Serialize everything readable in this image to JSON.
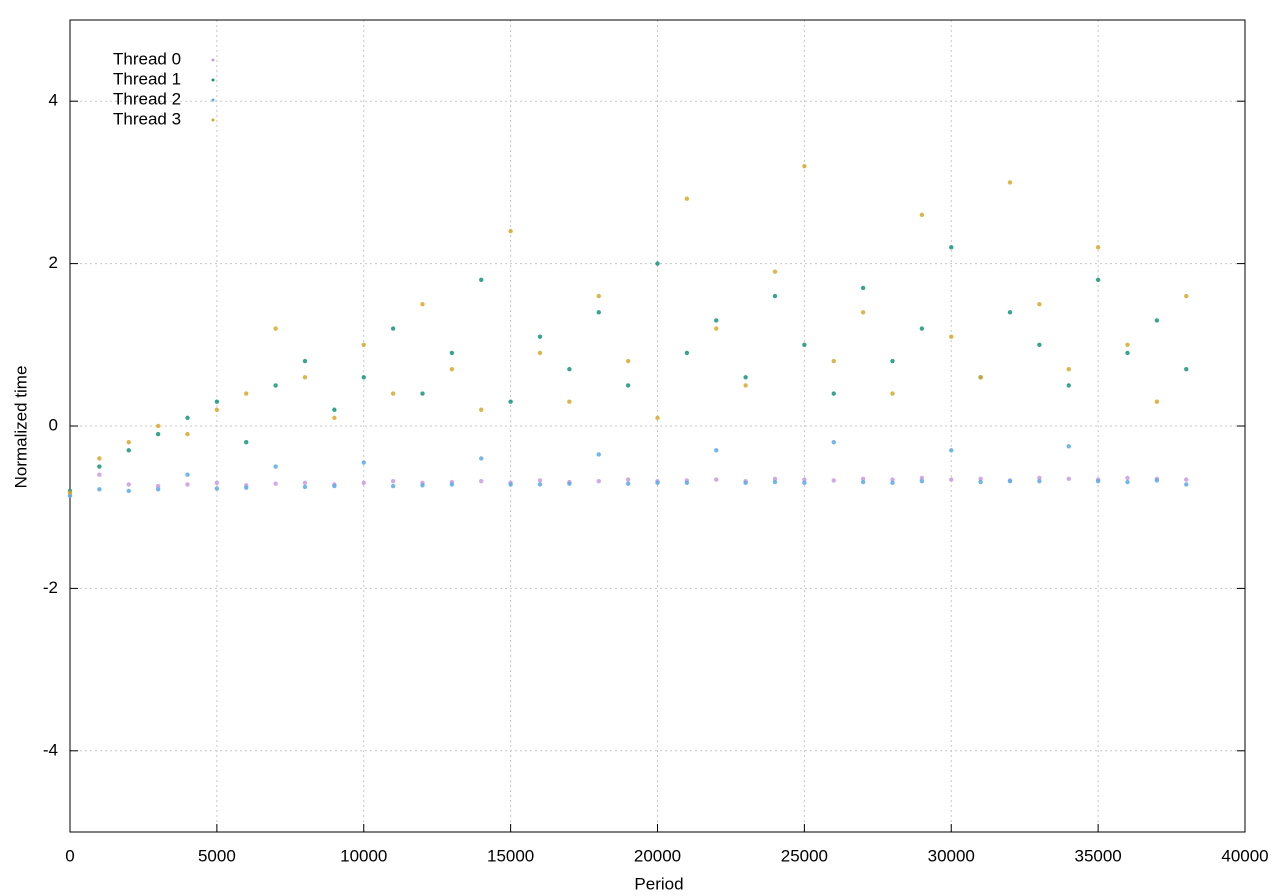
{
  "chart_data": {
    "type": "scatter",
    "xlabel": "Period",
    "ylabel": "Normalized time",
    "xlim": [
      0,
      40000
    ],
    "ylim": [
      -5,
      5
    ],
    "xticks": [
      0,
      5000,
      10000,
      15000,
      20000,
      25000,
      30000,
      35000,
      40000
    ],
    "yticks": [
      -4,
      -2,
      0,
      2,
      4
    ],
    "grid": true,
    "legend": "top-left",
    "x": [
      0,
      1000,
      2000,
      3000,
      4000,
      5000,
      6000,
      7000,
      8000,
      9000,
      10000,
      11000,
      12000,
      13000,
      14000,
      15000,
      16000,
      17000,
      18000,
      19000,
      20000,
      21000,
      22000,
      23000,
      24000,
      25000,
      26000,
      27000,
      28000,
      29000,
      30000,
      31000,
      32000,
      33000,
      34000,
      35000,
      36000,
      37000,
      38000
    ],
    "series": [
      {
        "name": "Thread 0",
        "color": "#c99ae3",
        "values": [
          -0.85,
          -0.6,
          -0.72,
          -0.74,
          -0.72,
          -0.7,
          -0.73,
          -0.71,
          -0.7,
          -0.72,
          -0.7,
          -0.68,
          -0.7,
          -0.69,
          -0.68,
          -0.7,
          -0.67,
          -0.69,
          -0.68,
          -0.66,
          -0.68,
          -0.67,
          -0.66,
          -0.68,
          -0.65,
          -0.66,
          -0.67,
          -0.65,
          -0.66,
          -0.64,
          -0.66,
          -0.65,
          -0.67,
          -0.64,
          -0.65,
          -0.66,
          -0.64,
          -0.65,
          -0.66
        ]
      },
      {
        "name": "Thread 1",
        "color": "#14957a",
        "values": [
          -0.8,
          -0.5,
          -0.3,
          -0.1,
          0.1,
          0.3,
          -0.2,
          0.5,
          0.8,
          0.2,
          0.6,
          1.2,
          0.4,
          0.9,
          1.8,
          0.3,
          1.1,
          0.7,
          1.4,
          0.5,
          2.0,
          0.9,
          1.3,
          0.6,
          1.6,
          1.0,
          0.4,
          1.7,
          0.8,
          1.2,
          2.2,
          0.6,
          1.4,
          1.0,
          0.5,
          1.8,
          0.9,
          1.3,
          0.7
        ]
      },
      {
        "name": "Thread 2",
        "color": "#5aaae6",
        "values": [
          -0.86,
          -0.78,
          -0.8,
          -0.78,
          -0.6,
          -0.77,
          -0.76,
          -0.5,
          -0.75,
          -0.74,
          -0.45,
          -0.74,
          -0.73,
          -0.72,
          -0.4,
          -0.72,
          -0.72,
          -0.71,
          -0.35,
          -0.71,
          -0.7,
          -0.7,
          -0.3,
          -0.7,
          -0.69,
          -0.7,
          -0.2,
          -0.69,
          -0.7,
          -0.68,
          -0.3,
          -0.69,
          -0.68,
          -0.68,
          -0.25,
          -0.68,
          -0.69,
          -0.67,
          -0.72
        ]
      },
      {
        "name": "Thread 3",
        "color": "#d8a82a",
        "values": [
          -0.82,
          -0.4,
          -0.2,
          0.0,
          -0.1,
          0.2,
          0.4,
          1.2,
          0.6,
          0.1,
          1.0,
          0.4,
          1.5,
          0.7,
          0.2,
          2.4,
          0.9,
          0.3,
          1.6,
          0.8,
          0.1,
          2.8,
          1.2,
          0.5,
          1.9,
          3.2,
          0.8,
          1.4,
          0.4,
          2.6,
          1.1,
          0.6,
          3.0,
          1.5,
          0.7,
          2.2,
          1.0,
          0.3,
          1.6
        ]
      }
    ]
  }
}
